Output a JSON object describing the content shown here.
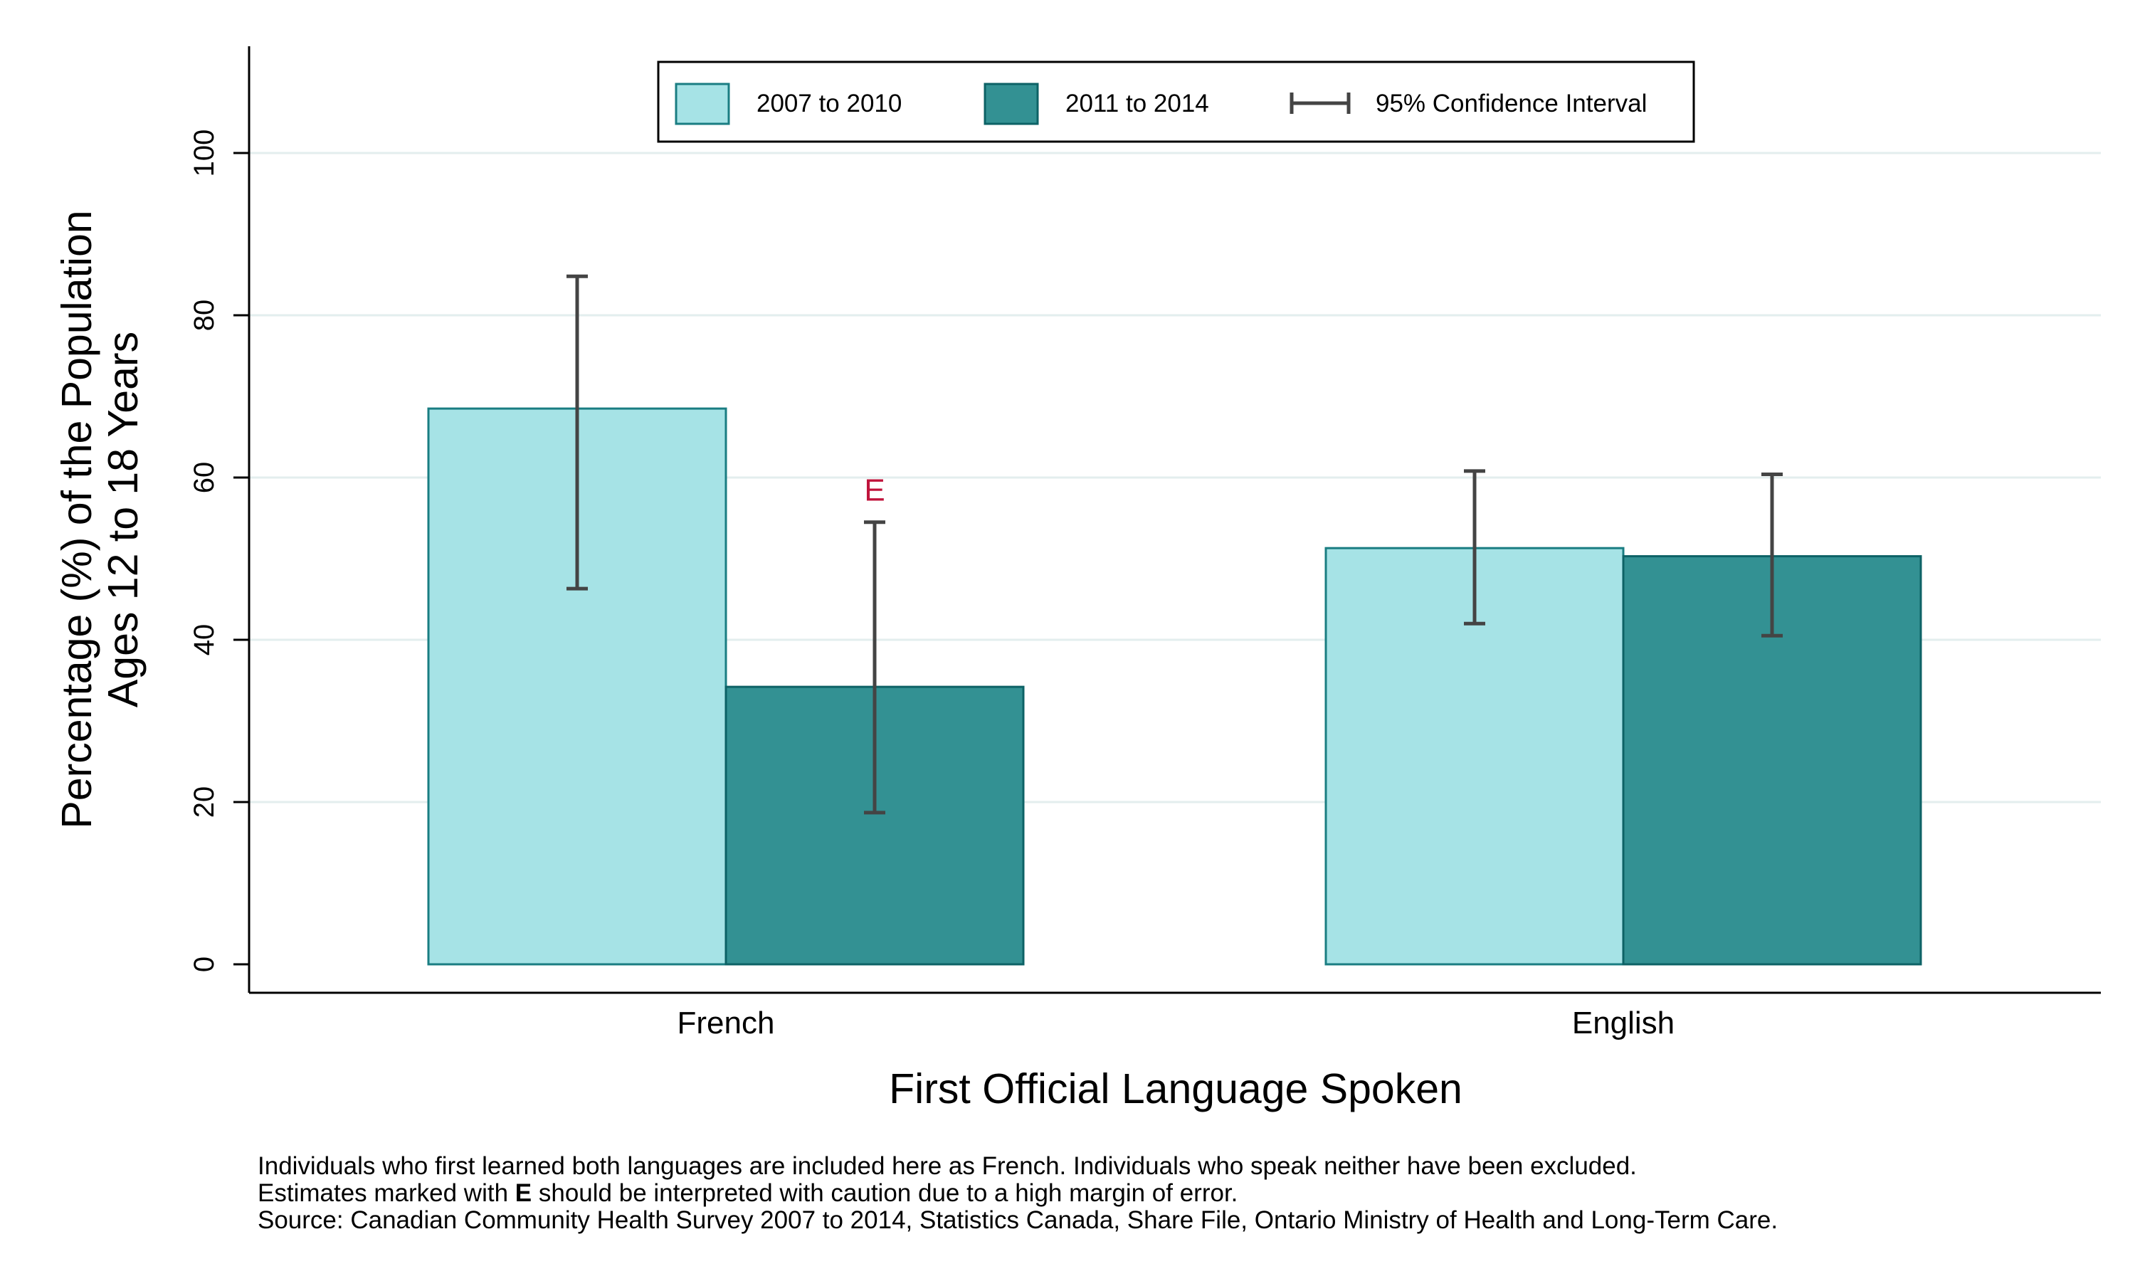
{
  "chart_data": {
    "type": "bar",
    "title": "",
    "xlabel": "First Official Language Spoken",
    "ylabel_line1": "Percentage (%) of the Population",
    "ylabel_line2": "Ages 12 to 18 Years",
    "categories": [
      "French",
      "English"
    ],
    "ylim": [
      0,
      112
    ],
    "yticks": [
      0,
      20,
      40,
      60,
      80,
      100
    ],
    "grid": true,
    "legend_position": "top-center",
    "series": [
      {
        "name": "2007 to 2010",
        "color": "#a6e3e6",
        "values": [
          68.5,
          51.3
        ],
        "ci_low": [
          46.3,
          42.0
        ],
        "ci_high": [
          84.8,
          60.8
        ],
        "flags": [
          "",
          ""
        ]
      },
      {
        "name": "2011 to 2014",
        "color": "#339193",
        "values": [
          34.2,
          50.3
        ],
        "ci_low": [
          18.7,
          40.5
        ],
        "ci_high": [
          54.5,
          60.4
        ],
        "flags": [
          "E",
          ""
        ]
      }
    ],
    "ci_legend_label": "95% Confidence Interval",
    "flag_color": "#c0143c"
  },
  "notes": {
    "line1": "Individuals who first learned both languages are included here as French.  Individuals who speak neither have been excluded.",
    "line2_prefix": "Estimates marked with ",
    "line2_bold": "E",
    "line2_suffix": " should be interpreted with caution due to a high margin of error.",
    "line3": "Source: Canadian Community Health Survey 2007 to 2014, Statistics Canada, Share File, Ontario Ministry of Health and Long-Term Care."
  }
}
